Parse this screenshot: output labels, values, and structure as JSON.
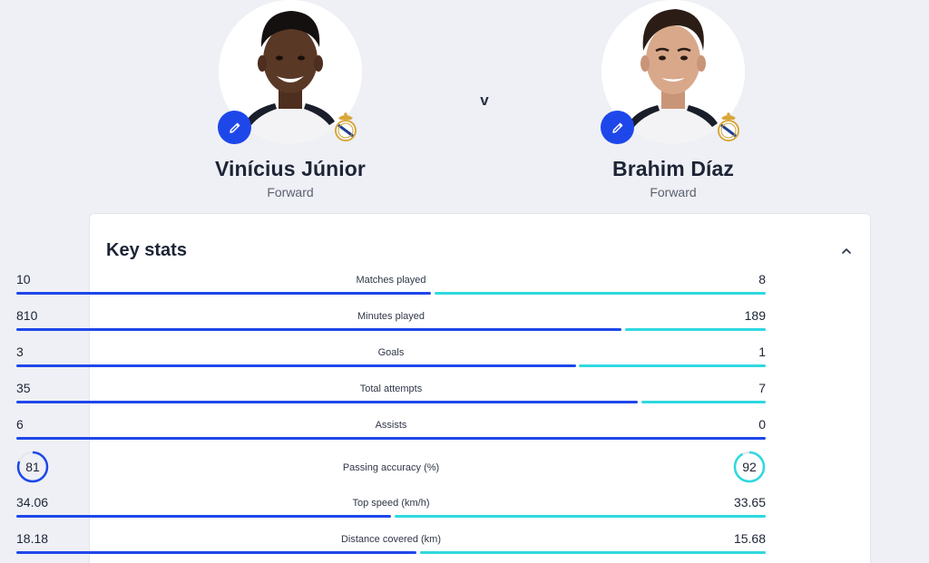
{
  "players": {
    "left": {
      "name": "Vinícius Júnior",
      "position": "Forward",
      "colors": {
        "skin": "#5a3826",
        "hair": "#151010",
        "shirt": "#f4f4f6",
        "accent": "#1e47ea"
      }
    },
    "right": {
      "name": "Brahim Díaz",
      "position": "Forward",
      "colors": {
        "skin": "#d9a88a",
        "hair": "#2b1d16",
        "shirt": "#f4f4f6",
        "accent": "#1e47ea"
      }
    },
    "versus": "v"
  },
  "icons": {
    "edit": "pencil-icon",
    "crest": "real-madrid-crest",
    "collapse": "chevron-up-icon"
  },
  "key_stats": {
    "title": "Key stats",
    "colors": {
      "left": "#1e47ea",
      "right": "#2fd8e0"
    },
    "bars": [
      {
        "label": "Matches played",
        "left": "10",
        "right": "8",
        "left_share": 0.556
      },
      {
        "label": "Minutes played",
        "left": "810",
        "right": "189",
        "left_share": 0.811
      },
      {
        "label": "Goals",
        "left": "3",
        "right": "1",
        "left_share": 0.75
      },
      {
        "label": "Total attempts",
        "left": "35",
        "right": "7",
        "left_share": 0.833
      },
      {
        "label": "Assists",
        "left": "6",
        "right": "0",
        "left_share": 1.0
      }
    ],
    "rings": {
      "label": "Passing accuracy (%)",
      "left": "81",
      "right": "92",
      "left_pct": 81,
      "right_pct": 92
    },
    "bars_after": [
      {
        "label": "Top speed (km/h)",
        "left": "34.06",
        "right": "33.65",
        "left_share": 0.503
      },
      {
        "label": "Distance covered (km)",
        "left": "18.18",
        "right": "15.68",
        "left_share": 0.537
      }
    ]
  }
}
